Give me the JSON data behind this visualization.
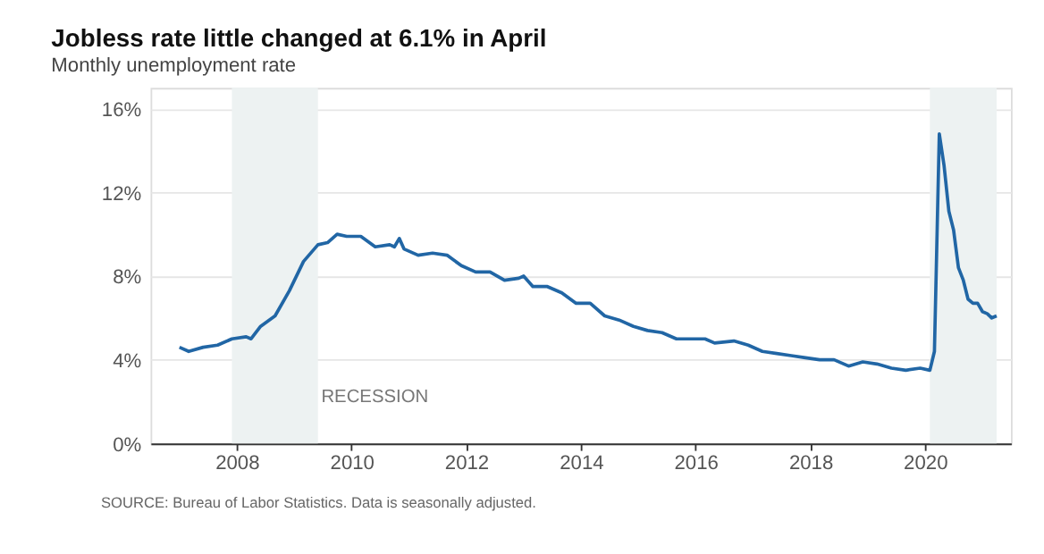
{
  "chart_data": {
    "type": "line",
    "title": "Jobless rate little changed at 6.1% in April",
    "subtitle": "Monthly unemployment rate",
    "x": [
      "2007-01",
      "2007-03",
      "2007-06",
      "2007-09",
      "2007-12",
      "2008-03",
      "2008-04",
      "2008-06",
      "2008-09",
      "2008-12",
      "2009-03",
      "2009-06",
      "2009-08",
      "2009-10",
      "2009-12",
      "2010-03",
      "2010-06",
      "2010-09",
      "2010-10",
      "2010-11",
      "2010-12",
      "2011-03",
      "2011-06",
      "2011-09",
      "2011-12",
      "2012-03",
      "2012-06",
      "2012-09",
      "2012-12",
      "2013-01",
      "2013-03",
      "2013-06",
      "2013-09",
      "2013-12",
      "2014-03",
      "2014-06",
      "2014-09",
      "2014-12",
      "2015-03",
      "2015-06",
      "2015-09",
      "2015-12",
      "2016-03",
      "2016-05",
      "2016-09",
      "2016-12",
      "2017-03",
      "2017-06",
      "2017-09",
      "2017-12",
      "2018-03",
      "2018-06",
      "2018-09",
      "2018-12",
      "2019-03",
      "2019-06",
      "2019-09",
      "2019-12",
      "2020-02",
      "2020-03",
      "2020-04",
      "2020-05",
      "2020-06",
      "2020-07",
      "2020-08",
      "2020-09",
      "2020-10",
      "2020-11",
      "2020-12",
      "2021-01",
      "2021-02",
      "2021-03",
      "2021-04"
    ],
    "series": [
      {
        "color": "#2166a5",
        "values": [
          4.6,
          4.4,
          4.6,
          4.7,
          5.0,
          5.1,
          5.0,
          5.6,
          6.1,
          7.3,
          8.7,
          9.5,
          9.6,
          10.0,
          9.9,
          9.9,
          9.4,
          9.5,
          9.4,
          9.8,
          9.3,
          9.0,
          9.1,
          9.0,
          8.5,
          8.2,
          8.2,
          7.8,
          7.9,
          8.0,
          7.5,
          7.5,
          7.2,
          6.7,
          6.7,
          6.1,
          5.9,
          5.6,
          5.4,
          5.3,
          5.0,
          5.0,
          5.0,
          4.8,
          4.9,
          4.7,
          4.4,
          4.3,
          4.2,
          4.1,
          4.0,
          4.0,
          3.7,
          3.9,
          3.8,
          3.6,
          3.5,
          3.6,
          3.5,
          4.4,
          14.8,
          13.3,
          11.1,
          10.2,
          8.4,
          7.8,
          6.9,
          6.7,
          6.7,
          6.3,
          6.2,
          6.0,
          6.1
        ]
      }
    ],
    "xlim": [
      "2006-07",
      "2021-07"
    ],
    "xticks": [
      {
        "value": "2008",
        "label": "2008"
      },
      {
        "value": "2010",
        "label": "2010"
      },
      {
        "value": "2012",
        "label": "2012"
      },
      {
        "value": "2014",
        "label": "2014"
      },
      {
        "value": "2016",
        "label": "2016"
      },
      {
        "value": "2018",
        "label": "2018"
      },
      {
        "value": "2020",
        "label": "2020"
      }
    ],
    "ylim": [
      0,
      17
    ],
    "yticks": [
      {
        "value": 0,
        "label": "0%"
      },
      {
        "value": 4,
        "label": "4%"
      },
      {
        "value": 8,
        "label": "8%"
      },
      {
        "value": 12,
        "label": "12%"
      },
      {
        "value": 16,
        "label": "16%"
      }
    ],
    "bands": [
      {
        "axis": "x",
        "from": "2007-12",
        "to": "2009-06",
        "label": "RECESSION",
        "color": "#edf2f2"
      },
      {
        "axis": "x",
        "from": "2020-02",
        "to": "2021-04",
        "color": "#edf2f2"
      }
    ],
    "grid": "y",
    "marker": "none",
    "line_style": "solid",
    "annotations": [
      "SOURCE: Bureau of Labor Statistics. Data is seasonally adjusted."
    ]
  }
}
